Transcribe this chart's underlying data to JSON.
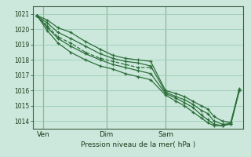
{
  "background_color": "#cce8dc",
  "plot_bg_color": "#cce8dc",
  "grid_color": "#99ccb8",
  "line_color": "#2d6e3a",
  "xlabel": "Pression niveau de la mer( hPa )",
  "ylim": [
    1013.5,
    1021.5
  ],
  "yticks": [
    1014,
    1015,
    1016,
    1017,
    1018,
    1019,
    1020,
    1021
  ],
  "xtick_labels": [
    "Ven",
    "Dim",
    "Sam"
  ],
  "xtick_positions": [
    0.05,
    0.35,
    0.63
  ],
  "vline_positions": [
    0.05,
    0.35,
    0.63
  ],
  "series": [
    {
      "x": [
        0.02,
        0.07,
        0.12,
        0.18,
        0.25,
        0.32,
        0.38,
        0.44,
        0.5,
        0.56,
        0.63,
        0.68,
        0.72,
        0.76,
        0.8,
        0.83,
        0.86,
        0.9,
        0.94,
        0.98
      ],
      "y": [
        1020.9,
        1020.6,
        1020.1,
        1019.8,
        1019.2,
        1018.7,
        1018.3,
        1018.1,
        1018.0,
        1017.9,
        1016.0,
        1015.8,
        1015.6,
        1015.3,
        1015.0,
        1014.8,
        1014.3,
        1014.0,
        1013.9,
        1016.1
      ],
      "marker": "+",
      "linestyle": "-",
      "lw": 0.9
    },
    {
      "x": [
        0.02,
        0.07,
        0.12,
        0.18,
        0.25,
        0.32,
        0.38,
        0.44,
        0.5,
        0.56,
        0.63,
        0.68,
        0.72,
        0.76,
        0.8,
        0.83,
        0.86,
        0.9,
        0.94,
        0.98
      ],
      "y": [
        1020.9,
        1020.4,
        1019.8,
        1019.4,
        1018.9,
        1018.4,
        1018.1,
        1017.9,
        1017.8,
        1017.6,
        1015.9,
        1015.6,
        1015.4,
        1015.1,
        1014.7,
        1014.5,
        1014.0,
        1013.8,
        1013.8,
        1016.0
      ],
      "marker": "+",
      "linestyle": "-",
      "lw": 0.9
    },
    {
      "x": [
        0.02,
        0.07,
        0.12,
        0.18,
        0.25,
        0.32,
        0.38,
        0.44,
        0.5,
        0.56
      ],
      "y": [
        1020.9,
        1020.2,
        1019.5,
        1019.1,
        1018.5,
        1018.1,
        1017.9,
        1017.7,
        1017.5,
        1017.5
      ],
      "marker": "+",
      "linestyle": "--",
      "lw": 0.9
    },
    {
      "x": [
        0.02,
        0.07,
        0.12,
        0.18,
        0.25,
        0.32,
        0.38,
        0.44,
        0.5,
        0.56,
        0.63,
        0.68,
        0.72,
        0.76,
        0.8,
        0.83,
        0.86,
        0.9,
        0.94,
        0.98
      ],
      "y": [
        1020.9,
        1020.1,
        1019.4,
        1018.9,
        1018.4,
        1018.0,
        1017.7,
        1017.5,
        1017.3,
        1017.1,
        1015.8,
        1015.5,
        1015.2,
        1014.9,
        1014.4,
        1014.1,
        1013.8,
        1013.7,
        1013.8,
        1016.0
      ],
      "marker": "+",
      "linestyle": "-",
      "lw": 0.9
    },
    {
      "x": [
        0.02,
        0.07,
        0.12,
        0.18,
        0.25,
        0.32,
        0.38,
        0.44,
        0.5,
        0.56,
        0.63,
        0.68,
        0.72,
        0.76,
        0.8,
        0.83,
        0.86,
        0.9,
        0.94,
        0.98
      ],
      "y": [
        1020.9,
        1019.9,
        1019.1,
        1018.5,
        1018.0,
        1017.6,
        1017.4,
        1017.1,
        1016.9,
        1016.7,
        1015.7,
        1015.3,
        1015.0,
        1014.6,
        1014.2,
        1013.9,
        1013.7,
        1013.7,
        1013.9,
        1016.0
      ],
      "marker": "+",
      "linestyle": "-",
      "lw": 0.9
    }
  ]
}
